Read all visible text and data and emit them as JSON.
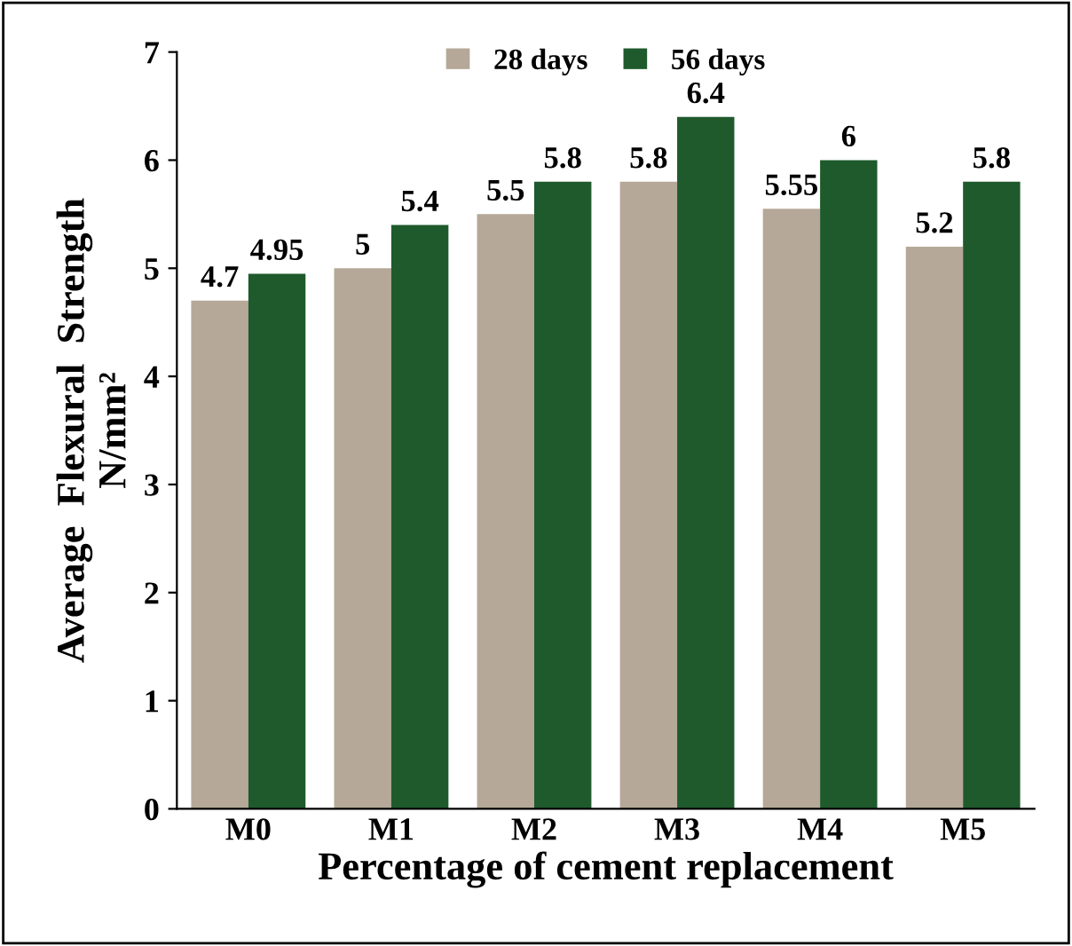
{
  "chart_data": {
    "type": "bar",
    "xlabel": "Percentage of cement replacement",
    "ylabel": "Average  Flexural  Strength\nN/mm²",
    "categories": [
      "M0",
      "M1",
      "M2",
      "M3",
      "M4",
      "M5"
    ],
    "series": [
      {
        "name": "28 days",
        "color": "#b5a898",
        "values": [
          4.7,
          5,
          5.5,
          5.8,
          5.55,
          5.2
        ]
      },
      {
        "name": "56 days",
        "color": "#1f5a2c",
        "values": [
          4.95,
          5.4,
          5.8,
          6.4,
          6,
          5.8
        ]
      }
    ],
    "ylim": [
      0,
      7
    ],
    "yticks": [
      0,
      1,
      2,
      3,
      4,
      5,
      6,
      7
    ],
    "grid": false,
    "legend": "top",
    "data_labels": true
  }
}
